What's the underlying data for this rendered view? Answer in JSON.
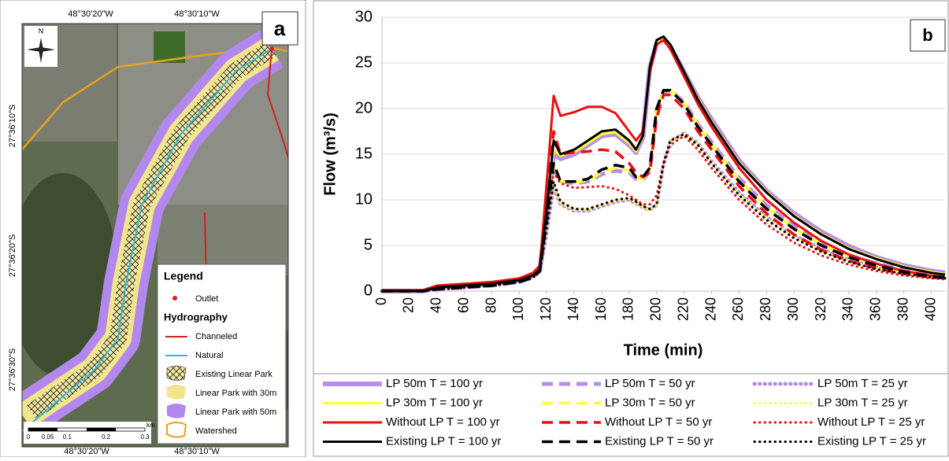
{
  "map": {
    "label": "a",
    "north": "N",
    "top_lon": [
      "48°30'20\"W",
      "48°30'10\"W"
    ],
    "bottom_lon": [
      "48°30'20\"W",
      "48°30'10\"W"
    ],
    "lat": [
      "27°36'10\"S",
      "27°36'20\"S",
      "27°36'30\"S"
    ],
    "legend": {
      "title": "Legend",
      "outlet": "Outlet",
      "hydrography": "Hydrography",
      "items": [
        "Channeled",
        "Natural",
        "Existing Linear Park",
        "Linear Park with 30m",
        "Linear Park with 50m",
        "Watershed"
      ]
    },
    "scale": {
      "ticks": [
        0,
        0.05,
        0.1,
        0.2,
        0.3
      ],
      "unit": "km"
    }
  },
  "chart_data": {
    "type": "line",
    "panel_label": "b",
    "x_label": "Time (min)",
    "y_label": "Flow (m³/s)",
    "xlim": [
      0,
      410
    ],
    "ylim": [
      0,
      30
    ],
    "xticks": [
      0,
      20,
      40,
      60,
      80,
      100,
      120,
      140,
      160,
      180,
      200,
      220,
      240,
      260,
      280,
      300,
      320,
      340,
      360,
      380,
      400
    ],
    "yticks": [
      0,
      5,
      10,
      15,
      20,
      25,
      30
    ],
    "grid": true,
    "x": [
      0,
      30,
      40,
      60,
      80,
      100,
      110,
      115,
      120,
      125,
      130,
      140,
      150,
      160,
      170,
      180,
      185,
      190,
      195,
      200,
      205,
      210,
      220,
      230,
      240,
      260,
      280,
      300,
      320,
      340,
      360,
      380,
      400,
      410
    ],
    "series": [
      {
        "name": "LP 50m T = 100 yr",
        "color": "#b88ee8",
        "style": "solid",
        "values": [
          0,
          0,
          0.4,
          0.6,
          0.8,
          1.2,
          1.7,
          2.4,
          8.5,
          15,
          14.5,
          15,
          16,
          17,
          17.2,
          16,
          15.2,
          16.8,
          24.5,
          27.2,
          27.6,
          26.8,
          24,
          21.2,
          18.8,
          14.3,
          11,
          8.5,
          6.5,
          4.9,
          3.7,
          2.8,
          2.2,
          2.0
        ]
      },
      {
        "name": "LP 50m T = 50 yr",
        "color": "#b88ee8",
        "style": "dashed",
        "values": [
          0,
          0,
          0.2,
          0.4,
          0.6,
          1.0,
          1.5,
          2.2,
          7.5,
          13.2,
          12,
          11.8,
          12,
          12.8,
          13.2,
          13,
          12.3,
          12.2,
          13.2,
          19.8,
          21.8,
          22,
          20.7,
          18.3,
          16.3,
          12.4,
          9.4,
          7.1,
          5.3,
          3.9,
          3,
          2.3,
          1.8,
          1.6
        ]
      },
      {
        "name": "LP 50m T = 25 yr",
        "color": "#b88ee8",
        "style": "dotted",
        "values": [
          0,
          0,
          0.2,
          0.4,
          0.6,
          1.0,
          1.5,
          2.2,
          6.5,
          11.5,
          9.5,
          8.8,
          8.8,
          9.3,
          9.8,
          10,
          9.6,
          9.2,
          8.9,
          9.4,
          13.8,
          16.4,
          17.3,
          16.2,
          14.2,
          10.8,
          8.1,
          6.1,
          4.6,
          3.4,
          2.6,
          2,
          1.6,
          1.5
        ]
      },
      {
        "name": "LP 30m T = 100 yr",
        "color": "#ffff33",
        "style": "solid",
        "values": [
          0,
          0,
          0.4,
          0.6,
          0.8,
          1.2,
          1.7,
          2.4,
          8.8,
          15.5,
          14.8,
          15.2,
          16.2,
          17.2,
          17.4,
          16.2,
          15.3,
          16.9,
          24.5,
          27.3,
          27.7,
          26.9,
          24,
          21.1,
          18.6,
          14.1,
          10.9,
          8.3,
          6.3,
          4.7,
          3.6,
          2.7,
          2.1,
          1.9
        ]
      },
      {
        "name": "LP 30m T = 50 yr",
        "color": "#ffff33",
        "style": "dashed",
        "values": [
          0,
          0,
          0.2,
          0.4,
          0.6,
          1.0,
          1.5,
          2.2,
          7.8,
          13.5,
          12,
          11.9,
          12.1,
          13,
          13.5,
          13.2,
          12.4,
          12.3,
          13.3,
          19.9,
          21.9,
          22,
          20.6,
          18.2,
          16.1,
          12.2,
          9.2,
          6.9,
          5.1,
          3.8,
          2.9,
          2.2,
          1.7,
          1.5
        ]
      },
      {
        "name": "LP 30m T = 25 yr",
        "color": "#ffff33",
        "style": "dotted",
        "values": [
          0,
          0,
          0.2,
          0.4,
          0.6,
          1.0,
          1.5,
          2.2,
          6.8,
          11.8,
          9.6,
          8.9,
          8.9,
          9.4,
          9.9,
          10.1,
          9.7,
          9.2,
          8.9,
          9.4,
          13.9,
          16.4,
          17.2,
          16.1,
          14.1,
          10.6,
          8,
          6,
          4.4,
          3.3,
          2.5,
          2,
          1.6,
          1.4
        ]
      },
      {
        "name": "Without LP T = 100 yr",
        "color": "#e81010",
        "style": "solid",
        "values": [
          0.1,
          0.1,
          0.6,
          0.8,
          1.0,
          1.4,
          2.0,
          2.8,
          12,
          21.4,
          19.2,
          19.6,
          20.2,
          20.2,
          19.5,
          17.5,
          16.5,
          17.5,
          24,
          27,
          27.5,
          26.5,
          23.5,
          20.5,
          18,
          13.5,
          10,
          7.5,
          5.5,
          4,
          3,
          2.2,
          1.7,
          1.5
        ]
      },
      {
        "name": "Without LP T = 50 yr",
        "color": "#e81010",
        "style": "dashed",
        "values": [
          0,
          0,
          0.2,
          0.4,
          0.6,
          1.0,
          1.5,
          2.2,
          10,
          17.5,
          15,
          15.2,
          15.3,
          15.5,
          15.3,
          14,
          13,
          12.5,
          13,
          19,
          21.5,
          21.5,
          20,
          17.5,
          15.5,
          11.5,
          8.5,
          6.2,
          4.5,
          3.3,
          2.5,
          1.9,
          1.5,
          1.4
        ]
      },
      {
        "name": "Without LP T = 25 yr",
        "color": "#e81010",
        "style": "dotted",
        "values": [
          0,
          0,
          0.2,
          0.4,
          0.6,
          1.0,
          1.5,
          2.2,
          8,
          13,
          11.8,
          11.3,
          11.4,
          11.5,
          11.2,
          10.5,
          10,
          9.5,
          9.5,
          10.5,
          14,
          16,
          17,
          15.5,
          13.5,
          10,
          7.3,
          5.3,
          3.9,
          2.9,
          2.2,
          1.7,
          1.4,
          1.3
        ]
      },
      {
        "name": "Existing LP T = 100 yr",
        "color": "#000000",
        "style": "solid",
        "values": [
          0,
          0,
          0.4,
          0.6,
          0.8,
          1.2,
          1.7,
          2.4,
          9,
          16.5,
          15,
          15.5,
          16.5,
          17.5,
          17.7,
          16.5,
          15.5,
          17,
          24.5,
          27.5,
          27.9,
          27,
          24,
          21,
          18.5,
          14,
          10.8,
          8.2,
          6.2,
          4.6,
          3.5,
          2.6,
          2,
          1.8
        ]
      },
      {
        "name": "Existing LP T = 50 yr",
        "color": "#000000",
        "style": "dashed",
        "values": [
          0,
          0,
          0.2,
          0.4,
          0.6,
          1.0,
          1.5,
          2.2,
          8,
          14,
          12,
          12,
          12.3,
          13.3,
          13.8,
          13.5,
          12.5,
          12.5,
          13.5,
          20,
          22,
          22,
          20.5,
          18,
          16,
          12,
          9,
          6.8,
          5,
          3.7,
          2.8,
          2.1,
          1.6,
          1.5
        ]
      },
      {
        "name": "Existing LP T = 25 yr",
        "color": "#000000",
        "style": "dotted",
        "values": [
          0,
          0,
          0.2,
          0.4,
          0.6,
          1.0,
          1.5,
          2.2,
          7,
          12,
          9.8,
          9,
          9,
          9.5,
          10,
          10.2,
          9.8,
          9.3,
          9,
          9.5,
          14,
          16.5,
          17.2,
          16,
          14,
          10.5,
          7.8,
          5.8,
          4.3,
          3.2,
          2.4,
          1.9,
          1.5,
          1.4
        ]
      }
    ]
  }
}
